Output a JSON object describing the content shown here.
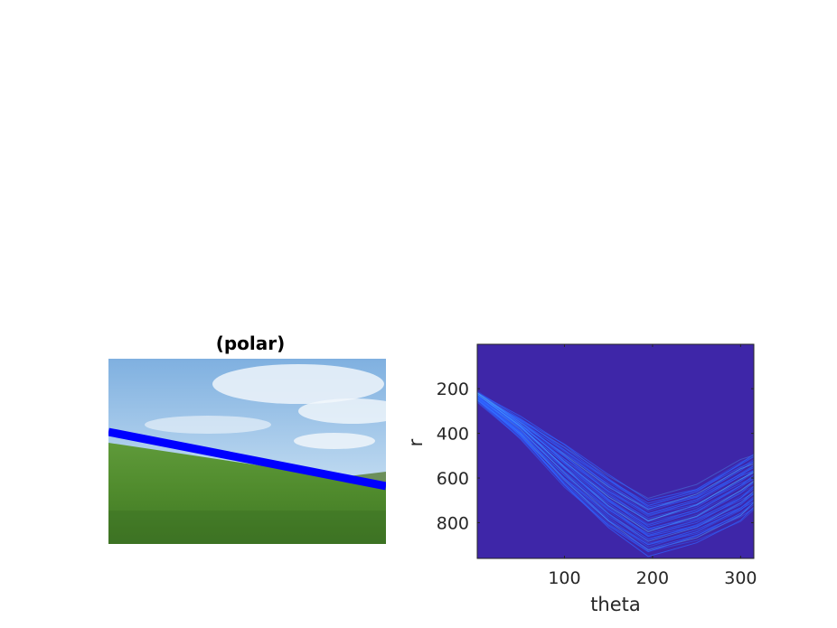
{
  "chart_data": [
    {
      "type": "image",
      "title": "(polar)",
      "image_description_hint": "photo",
      "colors": {
        "line": "#0000ff"
      }
    },
    {
      "type": "heatmap",
      "title": "",
      "xlabel": "theta",
      "ylabel": "r",
      "xlim": [
        1,
        315
      ],
      "ylim": [
        1,
        960
      ],
      "y_reversed": true,
      "xticks": [
        100,
        200,
        300
      ],
      "yticks": [
        200,
        400,
        600,
        800
      ],
      "colormap": "parula-low",
      "colors": {
        "background": "#3e26a8",
        "curves": "#2f62ff",
        "highlight": "#4aa8ff"
      },
      "curve_band": {
        "theta": [
          1,
          50,
          100,
          150,
          195,
          250,
          300,
          315
        ],
        "r_upper": [
          220,
          330,
          450,
          590,
          700,
          640,
          520,
          490
        ],
        "r_lower": [
          250,
          420,
          640,
          820,
          940,
          880,
          790,
          740
        ]
      }
    }
  ]
}
